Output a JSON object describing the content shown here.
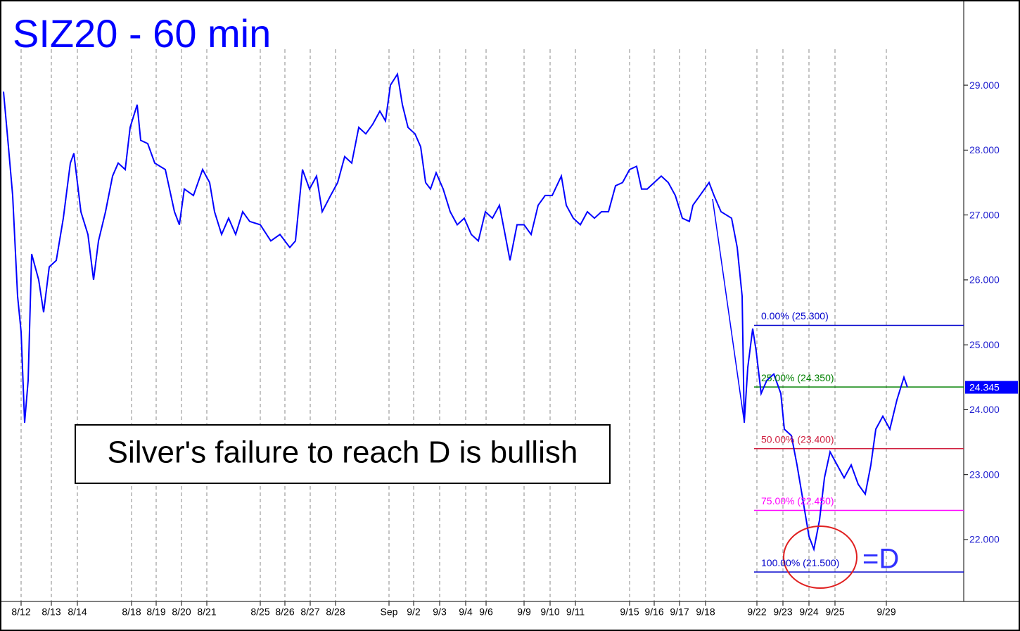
{
  "chart_data": {
    "type": "line",
    "title": "SIZ20 - 60 min",
    "annotation": "Silver's failure to reach D is bullish",
    "d_label": "=D",
    "xlim": [
      0,
      1365
    ],
    "ylim": [
      21.046,
      30.258
    ],
    "yticks": [
      {
        "value": 22,
        "label": "22.000"
      },
      {
        "value": 23,
        "label": "23.000"
      },
      {
        "value": 24,
        "label": "24.000"
      },
      {
        "value": 25,
        "label": "25.000"
      },
      {
        "value": 26,
        "label": "26.000"
      },
      {
        "value": 27,
        "label": "27.000"
      },
      {
        "value": 28,
        "label": "28.000"
      },
      {
        "value": 29,
        "label": "29.000"
      }
    ],
    "xticks": [
      {
        "value": 25,
        "label": "8/12"
      },
      {
        "value": 68,
        "label": "8/13"
      },
      {
        "value": 105,
        "label": "8/14"
      },
      {
        "value": 182,
        "label": "8/18"
      },
      {
        "value": 217,
        "label": "8/19"
      },
      {
        "value": 253,
        "label": "8/20"
      },
      {
        "value": 289,
        "label": "8/21"
      },
      {
        "value": 365,
        "label": "8/25"
      },
      {
        "value": 400,
        "label": "8/26"
      },
      {
        "value": 436,
        "label": "8/27"
      },
      {
        "value": 472,
        "label": "8/28"
      },
      {
        "value": 548,
        "label": "Sep"
      },
      {
        "value": 583,
        "label": "9/2"
      },
      {
        "value": 620,
        "label": "9/3"
      },
      {
        "value": 657,
        "label": "9/4"
      },
      {
        "value": 686,
        "label": "9/6"
      },
      {
        "value": 740,
        "label": "9/9"
      },
      {
        "value": 777,
        "label": "9/10"
      },
      {
        "value": 813,
        "label": "9/11"
      },
      {
        "value": 890,
        "label": "9/15"
      },
      {
        "value": 925,
        "label": "9/16"
      },
      {
        "value": 961,
        "label": "9/17"
      },
      {
        "value": 998,
        "label": "9/18"
      },
      {
        "value": 1071,
        "label": "9/22"
      },
      {
        "value": 1108,
        "label": "9/23"
      },
      {
        "value": 1145,
        "label": "9/24"
      },
      {
        "value": 1182,
        "label": "9/25"
      },
      {
        "value": 1255,
        "label": "9/29"
      }
    ],
    "grid": true,
    "series": [
      {
        "name": "SIZ20",
        "color": "#0000ff",
        "x": [
          0,
          7,
          13,
          20,
          25,
          30,
          35,
          40,
          50,
          57,
          65,
          75,
          85,
          95,
          100,
          110,
          120,
          128,
          135,
          145,
          155,
          163,
          173,
          180,
          190,
          195,
          205,
          215,
          230,
          243,
          250,
          257,
          270,
          283,
          293,
          300,
          310,
          320,
          330,
          340,
          350,
          365,
          380,
          393,
          407,
          415,
          425,
          435,
          445,
          453,
          465,
          475,
          485,
          495,
          505,
          515,
          525,
          535,
          543,
          550,
          560,
          567,
          575,
          585,
          593,
          600,
          607,
          615,
          625,
          635,
          645,
          655,
          665,
          675,
          685,
          695,
          705,
          713,
          720,
          730,
          740,
          750,
          760,
          770,
          780,
          793,
          800,
          810,
          820,
          830,
          840,
          850,
          860,
          870,
          880,
          890,
          900,
          907,
          915,
          925,
          935,
          945,
          955,
          965,
          975,
          980,
          990,
          1003,
          1010,
          1020,
          1035,
          1043,
          1050,
          1053,
          1058,
          1065,
          1070,
          1077,
          1085,
          1095,
          1105,
          1110,
          1120,
          1128,
          1135,
          1145,
          1152,
          1160,
          1167,
          1175,
          1185,
          1195,
          1205,
          1215,
          1225,
          1233,
          1240,
          1250,
          1260,
          1270,
          1280,
          1285
        ],
        "values": [
          28.9,
          28.05,
          27.3,
          25.75,
          25.2,
          23.8,
          24.45,
          26.4,
          26.0,
          25.5,
          26.2,
          26.3,
          26.95,
          27.8,
          27.95,
          27.05,
          26.7,
          26.0,
          26.6,
          27.05,
          27.6,
          27.8,
          27.7,
          28.35,
          28.7,
          28.15,
          28.1,
          27.8,
          27.7,
          27.05,
          26.85,
          27.4,
          27.3,
          27.7,
          27.5,
          27.05,
          26.7,
          26.95,
          26.7,
          27.05,
          26.9,
          26.85,
          26.6,
          26.7,
          26.5,
          26.6,
          27.7,
          27.4,
          27.6,
          27.05,
          27.3,
          27.5,
          27.9,
          27.8,
          28.35,
          28.25,
          28.4,
          28.6,
          28.45,
          29.0,
          29.17,
          28.7,
          28.35,
          28.25,
          28.05,
          27.5,
          27.4,
          27.65,
          27.4,
          27.05,
          26.85,
          26.95,
          26.7,
          26.6,
          27.05,
          26.95,
          27.15,
          26.7,
          26.3,
          26.85,
          26.85,
          26.7,
          27.15,
          27.3,
          27.3,
          27.6,
          27.15,
          26.95,
          26.85,
          27.05,
          26.95,
          27.05,
          27.05,
          27.45,
          27.5,
          27.7,
          27.75,
          27.4,
          27.4,
          27.5,
          27.6,
          27.5,
          27.3,
          26.95,
          26.9,
          27.15,
          27.3,
          27.5,
          27.3,
          27.05,
          26.95,
          26.5,
          25.75,
          23.8,
          24.65,
          25.25,
          24.9,
          24.25,
          24.45,
          24.55,
          24.25,
          23.7,
          23.6,
          23.15,
          22.7,
          22.05,
          21.85,
          22.3,
          22.95,
          23.35,
          23.15,
          22.95,
          23.15,
          22.85,
          22.7,
          23.15,
          23.7,
          23.9,
          23.7,
          24.15,
          24.5,
          24.345
        ]
      }
    ],
    "last_price": {
      "value": 24.345,
      "label": "24.345"
    },
    "fib_levels": [
      {
        "label": "0.00% (25.300)",
        "value": 25.3,
        "color": "#0000cc"
      },
      {
        "label": "25.00% (24.350)",
        "value": 24.35,
        "color": "#008000"
      },
      {
        "label": "50.00% (23.400)",
        "value": 23.4,
        "color": "#d02040"
      },
      {
        "label": "75.00% (22.450)",
        "value": 22.45,
        "color": "#ff00ff"
      },
      {
        "label": "100.00% (21.500)",
        "value": 21.5,
        "color": "#0000cc"
      }
    ],
    "fib_start": 1067
  }
}
